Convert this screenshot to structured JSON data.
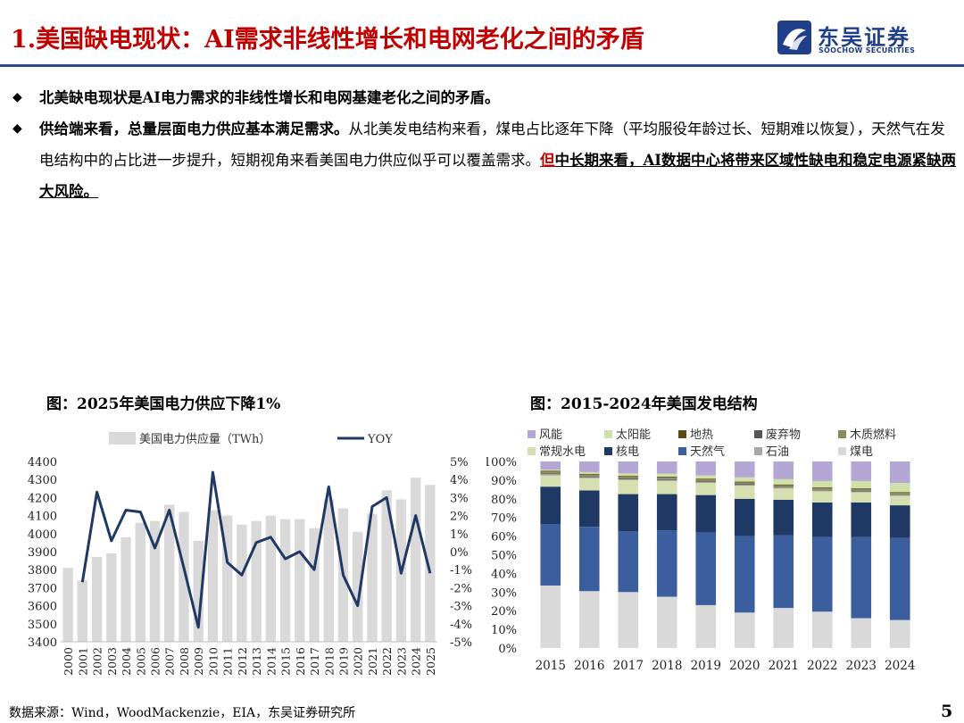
{
  "header": {
    "title": "1.美国缺电现状：AI需求非线性增长和电网老化之间的矛盾",
    "logo_cn": "东吴证券",
    "logo_en": "SOOCHOW SECURITIES"
  },
  "bullets": {
    "b1": "北美缺电现状是AI电力需求的非线性增长和电网基建老化之间的矛盾。",
    "b2_bold": "供给端来看，总量层面电力供应基本满足需求。",
    "b2_text": "从北美发电结构来看，煤电占比逐年下降（平均服役年龄过长、短期难以恢复），天然气在发电结构中的占比进一步提升，短期视角来看美国电力供应似乎可以覆盖需求。",
    "b2_red": "但",
    "b2_tail": "中长期来看，AI数据中心将带来区域性缺电和稳定电源紧缺两大风险。"
  },
  "figures": {
    "left_title": "图：2025年美国电力供应下降1%",
    "right_title": "图：2015-2024年美国发电结构"
  },
  "colors": {
    "title_red": "#c00000",
    "brand_blue": "#1f3f8a",
    "bar_gray": "#d9d9d9",
    "line_navy": "#1f3864"
  },
  "chart_data": [
    {
      "type": "bar",
      "categories": [
        "2000",
        "2001",
        "2002",
        "2003",
        "2004",
        "2005",
        "2006",
        "2007",
        "2008",
        "2009",
        "2010",
        "2011",
        "2012",
        "2013",
        "2014",
        "2015",
        "2016",
        "2017",
        "2018",
        "2019",
        "2020",
        "2021",
        "2022",
        "2023",
        "2024",
        "2025"
      ],
      "series": [
        {
          "name": "美国电力供应量（TWh）",
          "type": "bar",
          "axis": "left",
          "values": [
            3810,
            3740,
            3870,
            3890,
            3980,
            4060,
            4070,
            4160,
            4120,
            3960,
            4130,
            4100,
            4050,
            4070,
            4100,
            4080,
            4080,
            4030,
            4190,
            4140,
            4010,
            4110,
            4240,
            4190,
            4310,
            4270
          ]
        },
        {
          "name": "YOY",
          "type": "line",
          "axis": "right",
          "values": [
            null,
            -1.7,
            3.3,
            0.6,
            2.3,
            2.2,
            0.2,
            2.3,
            -0.9,
            -4.2,
            4.4,
            -0.6,
            -1.3,
            0.5,
            0.8,
            -0.4,
            0.0,
            -1.0,
            3.6,
            -1.3,
            -3.0,
            2.5,
            3.0,
            -1.2,
            2.0,
            -1.2
          ]
        }
      ],
      "ylim_left": [
        3400,
        4400
      ],
      "yticks_left": [
        3400,
        3500,
        3600,
        3700,
        3800,
        3900,
        4000,
        4100,
        4200,
        4300,
        4400
      ],
      "ylim_right": [
        -5,
        5
      ],
      "yticks_right": [
        "5%",
        "4%",
        "3%",
        "2%",
        "1%",
        "0%",
        "-1%",
        "-2%",
        "-3%",
        "-4%",
        "-5%"
      ],
      "legend_position": "top"
    },
    {
      "type": "bar",
      "stacked": true,
      "categories": [
        "2015",
        "2016",
        "2017",
        "2018",
        "2019",
        "2020",
        "2021",
        "2022",
        "2023",
        "2024"
      ],
      "series": [
        {
          "name": "煤电",
          "color": "#d9d9d9",
          "values": [
            33.5,
            30.5,
            30,
            27.5,
            23,
            19,
            21.5,
            19.5,
            16,
            15
          ]
        },
        {
          "name": "天然气",
          "color": "#3b5f9e",
          "values": [
            33,
            34.5,
            32.5,
            35.5,
            39,
            41,
            39,
            40,
            43.5,
            44
          ]
        },
        {
          "name": "核电",
          "color": "#1f3864",
          "values": [
            20,
            19.5,
            20,
            19.5,
            20,
            20,
            19,
            18.5,
            18.5,
            17.5
          ]
        },
        {
          "name": "常规水电",
          "color": "#d5dfb0",
          "values": [
            6,
            6.5,
            7.5,
            7,
            6.5,
            7,
            6,
            6,
            5.5,
            5
          ]
        },
        {
          "name": "石油",
          "color": "#a6a6a6",
          "values": [
            0.7,
            0.6,
            0.5,
            0.6,
            0.5,
            0.4,
            0.5,
            0.5,
            0.4,
            0.4
          ]
        },
        {
          "name": "废弃物",
          "color": "#555555",
          "values": [
            0.4,
            0.4,
            0.4,
            0.4,
            0.4,
            0.4,
            0.3,
            0.3,
            0.3,
            0.3
          ]
        },
        {
          "name": "木质燃料",
          "color": "#8a8a5c",
          "values": [
            1.0,
            1.0,
            1.0,
            1.0,
            1.0,
            1.0,
            1.0,
            1.0,
            1.0,
            1.0
          ]
        },
        {
          "name": "地热",
          "color": "#5c4a12",
          "values": [
            0.4,
            0.4,
            0.4,
            0.4,
            0.4,
            0.4,
            0.4,
            0.4,
            0.4,
            0.4
          ]
        },
        {
          "name": "太阳能",
          "color": "#cfe0a8",
          "values": [
            0.6,
            0.9,
            1.3,
            1.6,
            1.8,
            2.3,
            2.8,
            3.3,
            3.9,
            4.9
          ]
        },
        {
          "name": "风能",
          "color": "#b4a7d6",
          "values": [
            4.4,
            5.7,
            6.4,
            6.5,
            7.4,
            8.5,
            9.5,
            10.5,
            10.5,
            11.5
          ]
        }
      ],
      "legend": [
        "风能",
        "太阳能",
        "地热",
        "废弃物",
        "木质燃料",
        "常规水电",
        "核电",
        "天然气",
        "石油",
        "煤电"
      ],
      "ylim": [
        0,
        100
      ],
      "yticks": [
        "0%",
        "10%",
        "20%",
        "30%",
        "40%",
        "50%",
        "60%",
        "70%",
        "80%",
        "90%",
        "100%"
      ],
      "legend_position": "top"
    }
  ],
  "footer": {
    "source": "数据来源：Wind，WoodMackenzie，EIA，东吴证券研究所",
    "page": "5"
  }
}
